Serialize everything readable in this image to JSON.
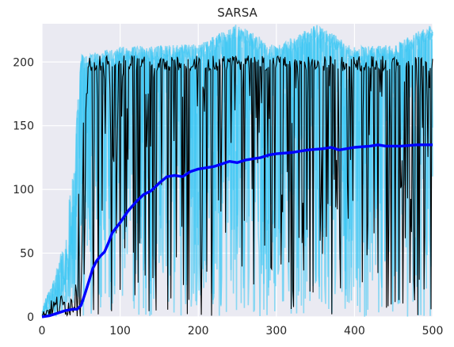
{
  "chart_data": {
    "type": "line",
    "title": "SARSA",
    "xlabel": "",
    "ylabel": "",
    "xlim": [
      0,
      500
    ],
    "ylim": [
      0,
      230
    ],
    "xticks": [
      0,
      100,
      200,
      300,
      400,
      500
    ],
    "yticks": [
      0,
      50,
      100,
      150,
      200
    ],
    "grid": true,
    "background": "#eaeaf2",
    "series": [
      {
        "role": "raw-runs",
        "color": "#38c6f4",
        "band_envelope": [
          [
            0,
            0,
            5
          ],
          [
            10,
            0,
            25
          ],
          [
            20,
            0,
            40
          ],
          [
            30,
            0,
            65
          ],
          [
            40,
            0,
            120
          ],
          [
            50,
            0,
            205
          ],
          [
            100,
            0,
            212
          ],
          [
            200,
            0,
            214
          ],
          [
            250,
            0,
            230
          ],
          [
            300,
            0,
            212
          ],
          [
            350,
            0,
            230
          ],
          [
            400,
            0,
            212
          ],
          [
            450,
            0,
            214
          ],
          [
            500,
            0,
            230
          ]
        ]
      },
      {
        "role": "single-run",
        "color": "#000000",
        "envelope": [
          [
            0,
            0,
            3
          ],
          [
            10,
            0,
            12
          ],
          [
            20,
            0,
            18
          ],
          [
            30,
            0,
            18
          ],
          [
            40,
            0,
            20
          ],
          [
            50,
            0,
            130
          ],
          [
            60,
            0,
            205
          ],
          [
            100,
            0,
            205
          ],
          [
            200,
            0,
            205
          ],
          [
            300,
            0,
            205
          ],
          [
            400,
            0,
            205
          ],
          [
            500,
            0,
            205
          ]
        ]
      },
      {
        "role": "moving-average",
        "color": "#0000ff",
        "x": [
          0,
          10,
          20,
          30,
          40,
          45,
          50,
          55,
          60,
          65,
          70,
          75,
          80,
          85,
          90,
          100,
          110,
          120,
          130,
          140,
          150,
          160,
          170,
          180,
          190,
          200,
          210,
          220,
          230,
          240,
          250,
          260,
          270,
          280,
          290,
          300,
          320,
          340,
          360,
          370,
          380,
          400,
          420,
          430,
          440,
          460,
          480,
          500
        ],
        "values": [
          0,
          1,
          3,
          5,
          6,
          6,
          9,
          18,
          28,
          38,
          44,
          48,
          51,
          58,
          66,
          74,
          83,
          90,
          96,
          99,
          105,
          110,
          111,
          110,
          114,
          116,
          117,
          118,
          120,
          122,
          121,
          123,
          124,
          125,
          127,
          128,
          129,
          131,
          132,
          133,
          131,
          133,
          134,
          135,
          134,
          134,
          135,
          135
        ]
      }
    ]
  }
}
